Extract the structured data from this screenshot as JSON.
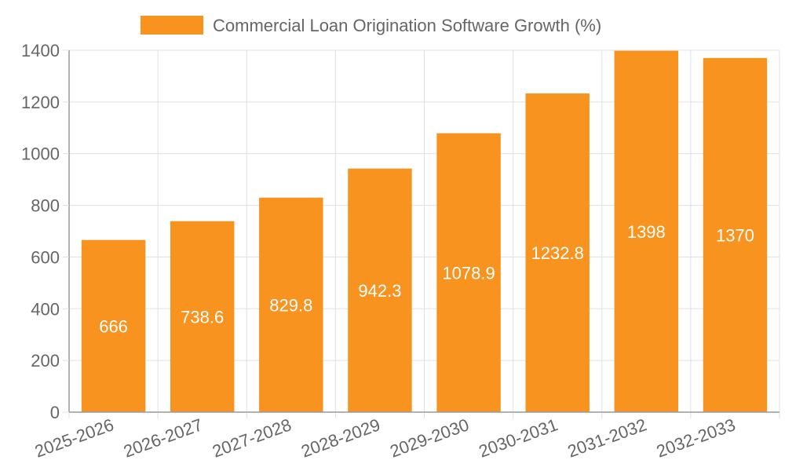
{
  "chart_data": {
    "type": "bar",
    "title": "",
    "xlabel": "",
    "ylabel": "",
    "categories": [
      "2025-2026",
      "2026-2027",
      "2027-2028",
      "2028-2029",
      "2029-2030",
      "2030-2031",
      "2031-2032",
      "2032-2033"
    ],
    "series": [
      {
        "name": "Commercial Loan Origination Software Growth (%)",
        "values": [
          666,
          738.6,
          829.8,
          942.3,
          1078.9,
          1232.8,
          1398,
          1370
        ],
        "color": "#f7931e"
      }
    ],
    "ylim": [
      0,
      1400
    ],
    "yticks": [
      0,
      200,
      400,
      600,
      800,
      1000,
      1200,
      1400
    ],
    "grid": true,
    "legend_position": "top-center",
    "data_labels": true
  }
}
